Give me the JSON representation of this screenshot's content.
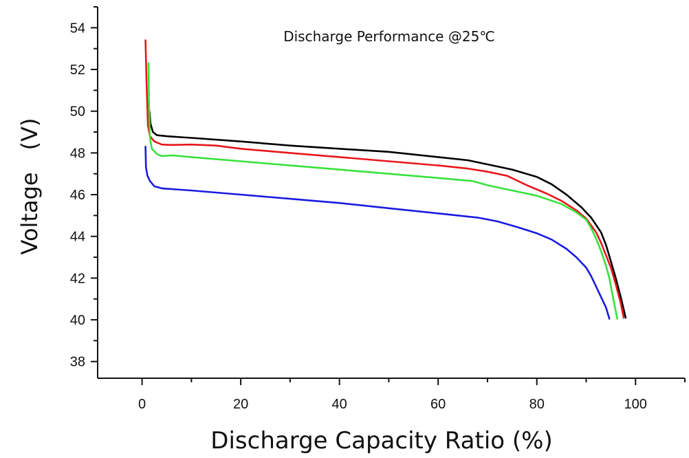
{
  "chart_data": {
    "type": "line",
    "title": "Discharge Performance @25℃",
    "xlabel": "Discharge Capacity Ratio (%)",
    "ylabel": "Voltage　(V)",
    "xlim": [
      -9,
      110
    ],
    "ylim": [
      37.2,
      55
    ],
    "xticks": [
      0,
      20,
      40,
      60,
      80,
      100
    ],
    "xtick_labels": [
      "0",
      "20",
      "40",
      "60",
      "80",
      "100"
    ],
    "yticks": [
      38,
      40,
      42,
      44,
      46,
      48,
      50,
      52,
      54
    ],
    "ytick_labels": [
      "38",
      "40",
      "42",
      "44",
      "46",
      "48",
      "50",
      "52",
      "54"
    ],
    "grid": false,
    "legend": "none",
    "series": [
      {
        "color": "#000000",
        "points": [
          [
            1.5,
            50.0
          ],
          [
            1.7,
            49.4
          ],
          [
            2.2,
            49.0
          ],
          [
            3,
            48.85
          ],
          [
            5,
            48.8
          ],
          [
            10,
            48.72
          ],
          [
            20,
            48.55
          ],
          [
            30,
            48.35
          ],
          [
            40,
            48.2
          ],
          [
            50,
            48.05
          ],
          [
            60,
            47.8
          ],
          [
            66,
            47.65
          ],
          [
            70,
            47.45
          ],
          [
            75,
            47.2
          ],
          [
            80,
            46.85
          ],
          [
            83,
            46.5
          ],
          [
            86,
            46.0
          ],
          [
            89,
            45.4
          ],
          [
            91,
            44.9
          ],
          [
            93,
            44.2
          ],
          [
            94,
            43.6
          ],
          [
            95,
            42.8
          ],
          [
            96,
            42.0
          ],
          [
            97,
            41.1
          ],
          [
            98,
            40.1
          ]
        ]
      },
      {
        "color": "#e8161b",
        "points": [
          [
            0.7,
            53.4
          ],
          [
            0.9,
            51.5
          ],
          [
            1.2,
            49.3
          ],
          [
            1.6,
            48.8
          ],
          [
            2.5,
            48.55
          ],
          [
            4,
            48.4
          ],
          [
            6,
            48.38
          ],
          [
            10,
            48.4
          ],
          [
            15,
            48.35
          ],
          [
            20,
            48.2
          ],
          [
            30,
            48.0
          ],
          [
            40,
            47.8
          ],
          [
            50,
            47.6
          ],
          [
            60,
            47.4
          ],
          [
            66,
            47.25
          ],
          [
            70,
            47.1
          ],
          [
            74,
            46.9
          ],
          [
            78,
            46.45
          ],
          [
            82,
            46.05
          ],
          [
            85,
            45.7
          ],
          [
            88,
            45.25
          ],
          [
            90,
            44.85
          ],
          [
            92,
            44.2
          ],
          [
            93,
            43.7
          ],
          [
            94,
            43.1
          ],
          [
            95,
            42.5
          ],
          [
            96,
            41.7
          ],
          [
            97,
            40.8
          ],
          [
            97.6,
            40.1
          ]
        ]
      },
      {
        "color": "#37e23b",
        "points": [
          [
            1.3,
            52.3
          ],
          [
            1.4,
            50.5
          ],
          [
            1.6,
            48.7
          ],
          [
            2,
            48.2
          ],
          [
            3,
            47.95
          ],
          [
            4,
            47.85
          ],
          [
            6,
            47.88
          ],
          [
            10,
            47.8
          ],
          [
            20,
            47.6
          ],
          [
            30,
            47.4
          ],
          [
            40,
            47.2
          ],
          [
            50,
            47.0
          ],
          [
            60,
            46.8
          ],
          [
            67,
            46.65
          ],
          [
            70,
            46.45
          ],
          [
            75,
            46.2
          ],
          [
            80,
            45.95
          ],
          [
            85,
            45.55
          ],
          [
            88,
            45.15
          ],
          [
            90,
            44.8
          ],
          [
            91,
            44.4
          ],
          [
            92,
            43.9
          ],
          [
            93,
            43.3
          ],
          [
            94,
            42.6
          ],
          [
            94.7,
            42.0
          ],
          [
            95.5,
            41.0
          ],
          [
            96.3,
            40.05
          ]
        ]
      },
      {
        "color": "#1a1ae0",
        "points": [
          [
            0.7,
            48.3
          ],
          [
            0.8,
            47.3
          ],
          [
            1.1,
            46.9
          ],
          [
            1.6,
            46.65
          ],
          [
            2.5,
            46.4
          ],
          [
            4,
            46.3
          ],
          [
            10,
            46.2
          ],
          [
            20,
            46.0
          ],
          [
            30,
            45.8
          ],
          [
            40,
            45.6
          ],
          [
            50,
            45.35
          ],
          [
            60,
            45.1
          ],
          [
            68,
            44.9
          ],
          [
            72,
            44.72
          ],
          [
            76,
            44.45
          ],
          [
            80,
            44.15
          ],
          [
            83,
            43.85
          ],
          [
            86,
            43.4
          ],
          [
            88,
            43.0
          ],
          [
            90,
            42.5
          ],
          [
            91,
            42.1
          ],
          [
            92,
            41.6
          ],
          [
            93,
            41.1
          ],
          [
            94,
            40.6
          ],
          [
            94.7,
            40.05
          ]
        ]
      }
    ]
  }
}
